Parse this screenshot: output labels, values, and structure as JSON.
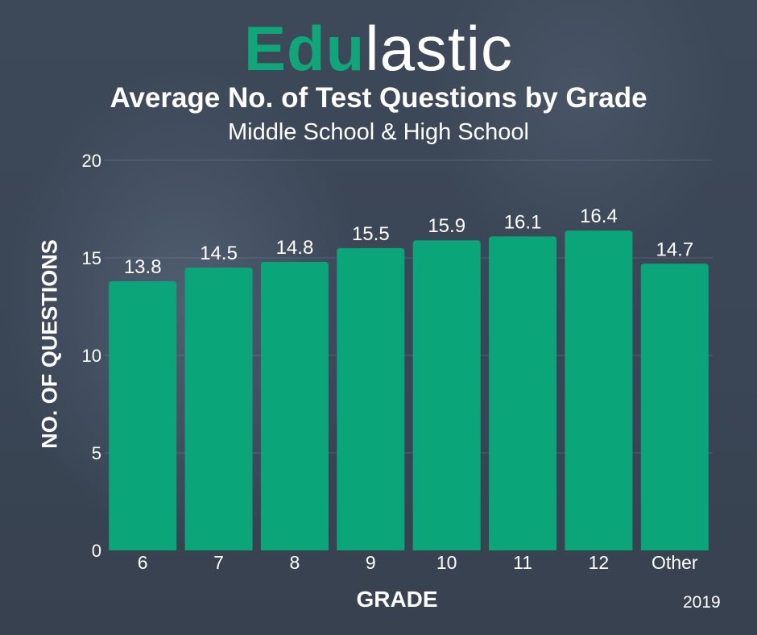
{
  "brand": {
    "logo_bold": "Edu",
    "logo_light": "lastic"
  },
  "footer": {
    "year": "2019"
  },
  "colors": {
    "bar": "#0ba57a",
    "background": "#3b4656",
    "text": "#ffffff"
  },
  "chart_data": {
    "type": "bar",
    "title": "Average No. of Test Questions by Grade",
    "subtitle": "Middle School & High School",
    "xlabel": "GRADE",
    "ylabel": "NO. OF QUESTIONS",
    "categories": [
      "6",
      "7",
      "8",
      "9",
      "10",
      "11",
      "12",
      "Other"
    ],
    "values": [
      13.8,
      14.5,
      14.8,
      15.5,
      15.9,
      16.1,
      16.4,
      14.7
    ],
    "data_labels": [
      "13.8",
      "14.5",
      "14.8",
      "15.5",
      "15.9",
      "16.1",
      "16.4",
      "14.7"
    ],
    "ylim": [
      0,
      20
    ],
    "yticks": [
      0,
      5,
      10,
      15,
      20
    ],
    "ytick_labels": [
      "0",
      "5",
      "10",
      "15",
      "20"
    ],
    "grid": true,
    "legend": "none"
  }
}
